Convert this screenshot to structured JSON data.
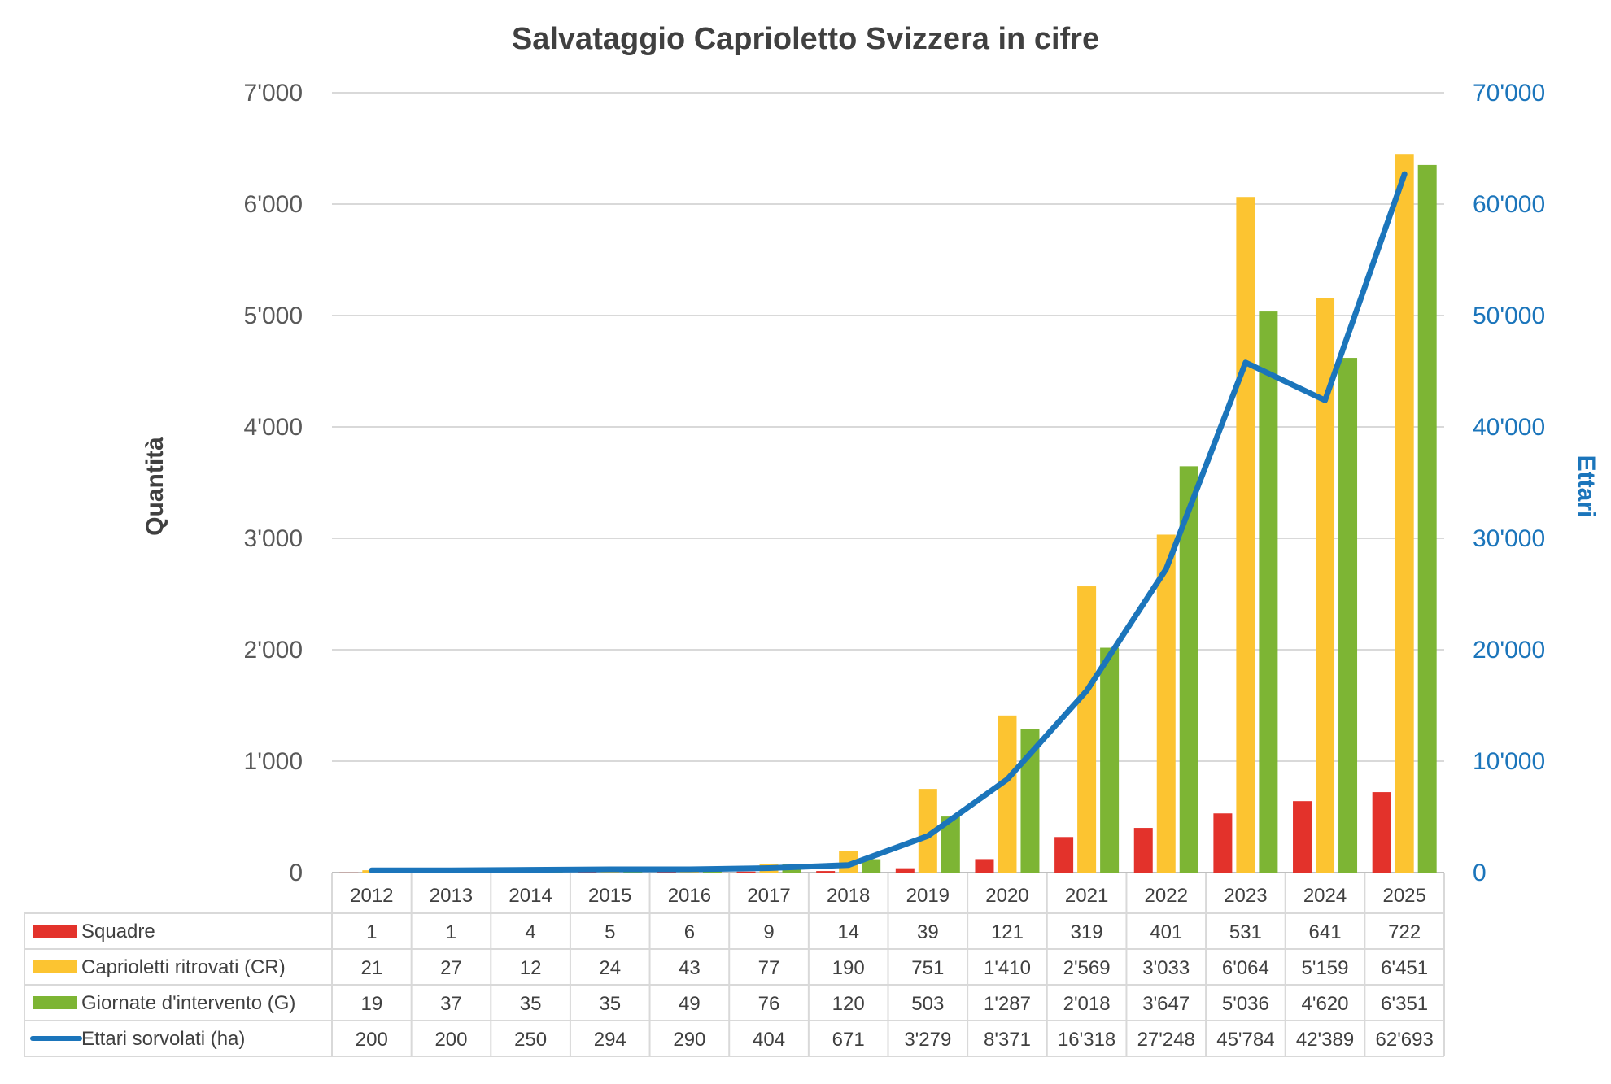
{
  "chart_data": {
    "type": "bar",
    "title": "Salvataggio Caprioletto Svizzera in cifre",
    "ylabel": "Quantità",
    "y2label": "Ettari",
    "ylim": [
      0,
      7000
    ],
    "y2lim": [
      0,
      70000
    ],
    "yticks": [
      "0",
      "1'000",
      "2'000",
      "3'000",
      "4'000",
      "5'000",
      "6'000",
      "7'000"
    ],
    "y2ticks": [
      "0",
      "10'000",
      "20'000",
      "30'000",
      "40'000",
      "50'000",
      "60'000",
      "70'000"
    ],
    "grid": true,
    "categories": [
      "2012",
      "2013",
      "2014",
      "2015",
      "2016",
      "2017",
      "2018",
      "2019",
      "2020",
      "2021",
      "2022",
      "2023",
      "2024",
      "2025"
    ],
    "series": [
      {
        "name": "Squadre",
        "type": "bar",
        "axis": "left",
        "color": "#e3322b",
        "values": [
          1,
          1,
          4,
          5,
          6,
          9,
          14,
          39,
          121,
          319,
          401,
          531,
          641,
          722
        ],
        "labels": [
          "1",
          "1",
          "4",
          "5",
          "6",
          "9",
          "14",
          "39",
          "121",
          "319",
          "401",
          "531",
          "641",
          "722"
        ]
      },
      {
        "name": "Caprioletti ritrovati (CR)",
        "type": "bar",
        "axis": "left",
        "color": "#fcc431",
        "values": [
          21,
          27,
          12,
          24,
          43,
          77,
          190,
          751,
          1410,
          2569,
          3033,
          6064,
          5159,
          6451
        ],
        "labels": [
          "21",
          "27",
          "12",
          "24",
          "43",
          "77",
          "190",
          "751",
          "1'410",
          "2'569",
          "3'033",
          "6'064",
          "5'159",
          "6'451"
        ]
      },
      {
        "name": "Giornate d'intervento (G)",
        "type": "bar",
        "axis": "left",
        "color": "#7db534",
        "values": [
          19,
          37,
          35,
          35,
          49,
          76,
          120,
          503,
          1287,
          2018,
          3647,
          5036,
          4620,
          6351
        ],
        "labels": [
          "19",
          "37",
          "35",
          "35",
          "49",
          "76",
          "120",
          "503",
          "1'287",
          "2'018",
          "3'647",
          "5'036",
          "4'620",
          "6'351"
        ]
      },
      {
        "name": "Ettari sorvolati (ha)",
        "type": "line",
        "axis": "right",
        "color": "#1b75bb",
        "values": [
          200,
          200,
          250,
          294,
          290,
          404,
          671,
          3279,
          8371,
          16318,
          27248,
          45784,
          42389,
          62693
        ],
        "labels": [
          "200",
          "200",
          "250",
          "294",
          "290",
          "404",
          "671",
          "3'279",
          "8'371",
          "16'318",
          "27'248",
          "45'784",
          "42'389",
          "62'693"
        ]
      }
    ]
  }
}
